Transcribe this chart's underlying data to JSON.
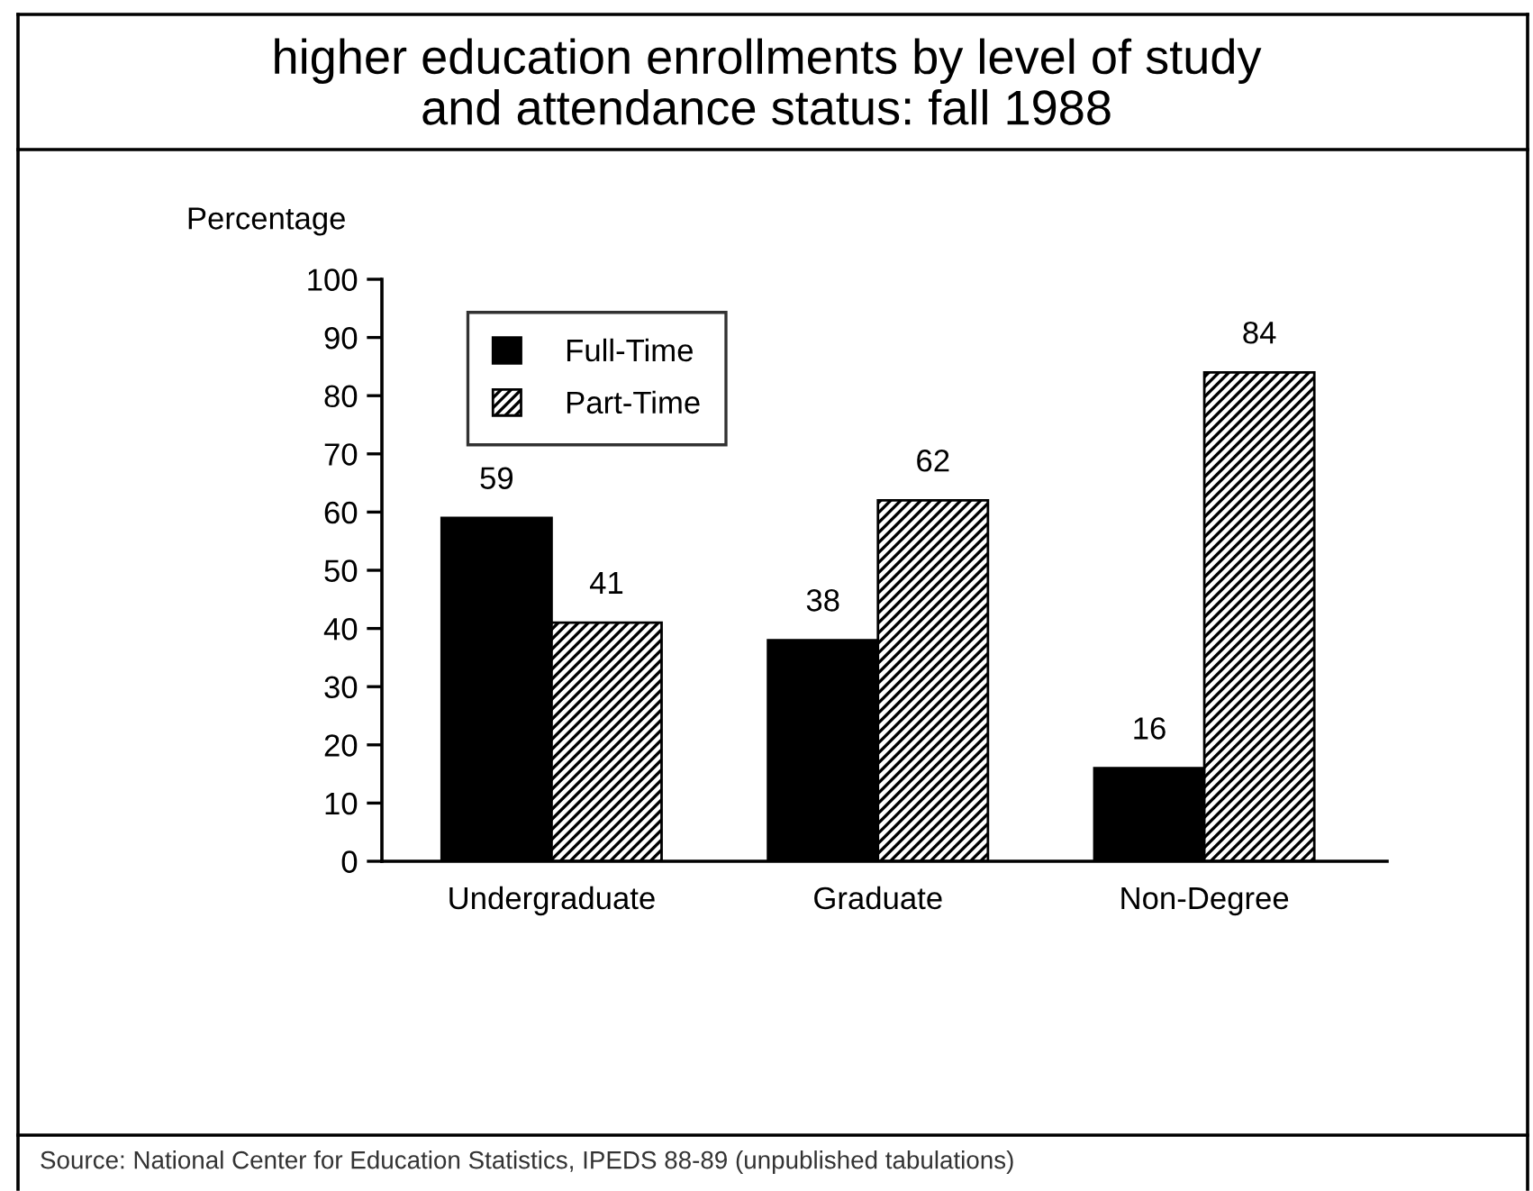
{
  "chart_data": {
    "type": "bar",
    "title": "higher education enrollments by level of study\nand attendance status: fall 1988",
    "ylabel": "Percentage",
    "categories": [
      "Undergraduate",
      "Graduate",
      "Non-Degree"
    ],
    "series": [
      {
        "name": "Full-Time",
        "color": "#000000",
        "values": [
          59,
          38,
          16
        ]
      },
      {
        "name": "Part-Time",
        "color": "#000000",
        "values": [
          41,
          62,
          84
        ]
      }
    ],
    "ylim": [
      0,
      100
    ],
    "yticks": [
      0,
      10,
      20,
      30,
      40,
      50,
      60,
      70,
      80,
      90,
      100
    ],
    "data_labels": true,
    "legend": "top left",
    "grid": false,
    "annotations": [
      "Source: National Center for Education Statistics, IPEDS 88-89 (unpublished tabulations)"
    ]
  }
}
